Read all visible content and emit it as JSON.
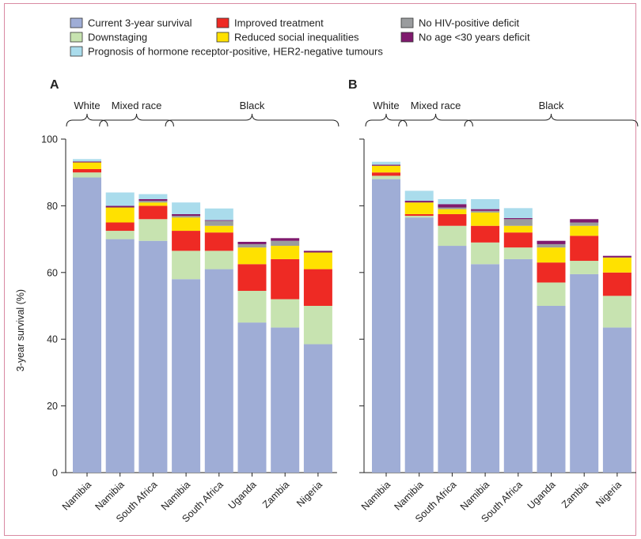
{
  "legend": [
    {
      "key": "current",
      "label": "Current 3-year survival",
      "color": "#9fadd6"
    },
    {
      "key": "improved",
      "label": "Improved treatment",
      "color": "#ee2a24"
    },
    {
      "key": "hiv",
      "label": "No HIV-positive deficit",
      "color": "#9a9c9e"
    },
    {
      "key": "downstaging",
      "label": "Downstaging",
      "color": "#c7e3b0"
    },
    {
      "key": "social",
      "label": "Reduced social inequalities",
      "color": "#ffe100"
    },
    {
      "key": "age",
      "label": "No age <30 years deficit",
      "color": "#7f1a6e"
    },
    {
      "key": "prognosis",
      "label": "Prognosis of hormone receptor-positive, HER2-negative tumours",
      "color": "#aadcec"
    }
  ],
  "ylabel": "3-year survival (%)",
  "yticks": [
    "0",
    "20",
    "40",
    "60",
    "80",
    "100"
  ],
  "chart_data": [
    {
      "panel": "A",
      "type": "bar",
      "stacked": true,
      "ylim": [
        0,
        100
      ],
      "ylabel": "3-year survival (%)",
      "categories": [
        "Namibia",
        "Namibia",
        "South Africa",
        "Namibia",
        "South Africa",
        "Uganda",
        "Zambia",
        "Nigeria"
      ],
      "groups": [
        {
          "label": "White",
          "from": 0,
          "to": 0
        },
        {
          "label": "Mixed race",
          "from": 1,
          "to": 2
        },
        {
          "label": "Black",
          "from": 3,
          "to": 7
        }
      ],
      "series": [
        {
          "name": "Current 3-year survival",
          "key": "current",
          "values": [
            88.5,
            70,
            69.5,
            58,
            61,
            45,
            43.5,
            38.5
          ]
        },
        {
          "name": "Downstaging",
          "key": "downstaging",
          "values": [
            1.5,
            2.5,
            6.5,
            8.5,
            5.5,
            9.5,
            8.5,
            11.5
          ]
        },
        {
          "name": "Improved treatment",
          "key": "improved",
          "values": [
            1,
            2.5,
            4,
            6,
            5.5,
            8,
            12,
            11
          ]
        },
        {
          "name": "Reduced social inequalities",
          "key": "social",
          "values": [
            2,
            4.5,
            1,
            4,
            2,
            5,
            4,
            5
          ]
        },
        {
          "name": "No HIV-positive deficit",
          "key": "hiv",
          "values": [
            0,
            0,
            0.5,
            0.5,
            1.5,
            1,
            1.5,
            0
          ]
        },
        {
          "name": "No age <30 years deficit",
          "key": "age",
          "values": [
            0.3,
            0.5,
            0.5,
            0.5,
            0.2,
            0.7,
            0.8,
            0.5
          ]
        },
        {
          "name": "Prognosis of hormone receptor-positive, HER2-negative tumours",
          "key": "prognosis",
          "values": [
            0.7,
            4,
            1.5,
            3.5,
            3.5,
            0,
            0,
            0
          ]
        }
      ]
    },
    {
      "panel": "B",
      "type": "bar",
      "stacked": true,
      "ylim": [
        0,
        100
      ],
      "ylabel": "3-year survival (%)",
      "categories": [
        "Namibia",
        "Namibia",
        "South Africa",
        "Namibia",
        "South Africa",
        "Uganda",
        "Zambia",
        "Nigeria"
      ],
      "groups": [
        {
          "label": "White",
          "from": 0,
          "to": 0
        },
        {
          "label": "Mixed race",
          "from": 1,
          "to": 2
        },
        {
          "label": "Black",
          "from": 3,
          "to": 7
        }
      ],
      "series": [
        {
          "name": "Current 3-year survival",
          "key": "current",
          "values": [
            88,
            76.5,
            68,
            62.5,
            64,
            50,
            59.5,
            43.5
          ]
        },
        {
          "name": "Downstaging",
          "key": "downstaging",
          "values": [
            1,
            0.5,
            6,
            6.5,
            3.5,
            7,
            4,
            9.5
          ]
        },
        {
          "name": "Improved treatment",
          "key": "improved",
          "values": [
            1,
            0.5,
            3.5,
            5,
            4.5,
            6,
            7.5,
            7
          ]
        },
        {
          "name": "Reduced social inequalities",
          "key": "social",
          "values": [
            2,
            3.5,
            1.5,
            4,
            2,
            4.5,
            3,
            4.5
          ]
        },
        {
          "name": "No HIV-positive deficit",
          "key": "hiv",
          "values": [
            0,
            0,
            0.5,
            0.5,
            2,
            1,
            1,
            0
          ]
        },
        {
          "name": "No age <30 years deficit",
          "key": "age",
          "values": [
            0.3,
            0.5,
            1,
            0.5,
            0.3,
            1,
            1,
            0.5
          ]
        },
        {
          "name": "Prognosis of hormone receptor-positive, HER2-negative tumours",
          "key": "prognosis",
          "values": [
            0.9,
            3,
            1.5,
            3,
            3,
            0,
            0,
            0
          ]
        }
      ]
    }
  ]
}
